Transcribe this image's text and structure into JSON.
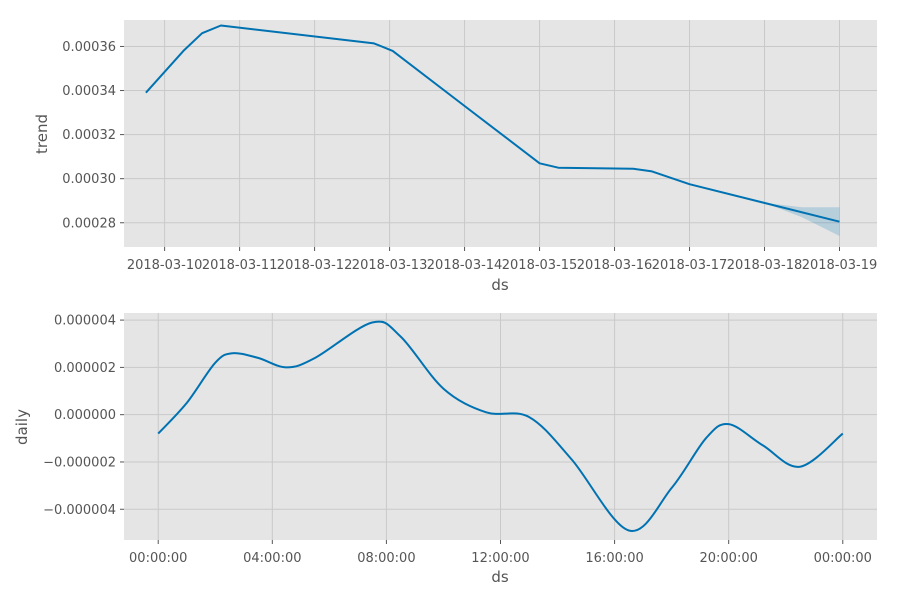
{
  "chart_data": [
    {
      "type": "line",
      "xlabel": "ds",
      "ylabel": "trend",
      "x_ticks": [
        "2018-03-10",
        "2018-03-11",
        "2018-03-12",
        "2018-03-13",
        "2018-03-14",
        "2018-03-15",
        "2018-03-16",
        "2018-03-17",
        "2018-03-18",
        "2018-03-19"
      ],
      "xlim": [
        "2018-03-09T11:00:00",
        "2018-03-19T12:00:00"
      ],
      "y_ticks": [
        0.00028,
        0.0003,
        0.00032,
        0.00034,
        0.00036
      ],
      "y_tick_labels": [
        "0.00028",
        "0.00030",
        "0.00032",
        "0.00034",
        "0.00036"
      ],
      "ylim": [
        0.000269,
        0.000372
      ],
      "series": [
        {
          "points": [
            [
              "2018-03-09T18:00:00",
              0.000339
            ],
            [
              "2018-03-10T06:00:00",
              0.000358
            ],
            [
              "2018-03-10T12:00:00",
              0.000366
            ],
            [
              "2018-03-10T18:00:00",
              0.0003695
            ],
            [
              "2018-03-12T19:00:00",
              0.0003614
            ],
            [
              "2018-03-13T01:00:00",
              0.000358
            ],
            [
              "2018-03-14T00:00:00",
              0.000333
            ],
            [
              "2018-03-15T00:00:00",
              0.000307
            ],
            [
              "2018-03-15T06:00:00",
              0.000305
            ],
            [
              "2018-03-16T06:00:00",
              0.0003045
            ],
            [
              "2018-03-16T12:00:00",
              0.0003033
            ],
            [
              "2018-03-17T00:00:00",
              0.0002975
            ],
            [
              "2018-03-19T00:00:00",
              0.0002805
            ]
          ],
          "uncertainty_band": [
            [
              "2018-03-18T00:00:00",
              0.000289,
              0.000289
            ],
            [
              "2018-03-18T12:00:00",
              0.000287,
              0.0002825
            ],
            [
              "2018-03-19T00:00:00",
              0.000287,
              0.000274
            ]
          ]
        }
      ],
      "grid": true,
      "color": "#0072B2",
      "background": "#e5e5e5"
    },
    {
      "type": "line",
      "xlabel": "ds",
      "ylabel": "daily",
      "x_ticks": [
        "00:00:00",
        "04:00:00",
        "08:00:00",
        "12:00:00",
        "16:00:00",
        "20:00:00",
        "00:00:00"
      ],
      "x_tick_hours": [
        0,
        4,
        8,
        12,
        16,
        20,
        24
      ],
      "xlim_hours": [
        -1.2,
        25.2
      ],
      "y_ticks": [
        -4e-06,
        -2e-06,
        0,
        2e-06,
        4e-06
      ],
      "y_tick_labels": [
        "−0.000004",
        "−0.000002",
        "0.000000",
        "0.000002",
        "0.000004"
      ],
      "ylim": [
        -5.3e-06,
        4.3e-06
      ],
      "series": [
        {
          "points_hours": [
            [
              0,
              -8e-07
            ],
            [
              1,
              5e-07
            ],
            [
              2,
              2.2e-06
            ],
            [
              2.6,
              2.6e-06
            ],
            [
              3.5,
              2.4e-06
            ],
            [
              4.5,
              2e-06
            ],
            [
              5.5,
              2.4e-06
            ],
            [
              7.5,
              3.9e-06
            ],
            [
              8.5,
              3.3e-06
            ],
            [
              10,
              1.1e-06
            ],
            [
              11.5,
              1e-07
            ],
            [
              13,
              -1e-07
            ],
            [
              14.5,
              -1.9e-06
            ],
            [
              16.5,
              -4.9e-06
            ],
            [
              18,
              -3.1e-06
            ],
            [
              19.2,
              -1e-06
            ],
            [
              20,
              -4e-07
            ],
            [
              21.2,
              -1.3e-06
            ],
            [
              22.5,
              -2.2e-06
            ],
            [
              24,
              -8e-07
            ]
          ]
        }
      ],
      "grid": true,
      "color": "#0072B2",
      "background": "#e5e5e5"
    }
  ]
}
